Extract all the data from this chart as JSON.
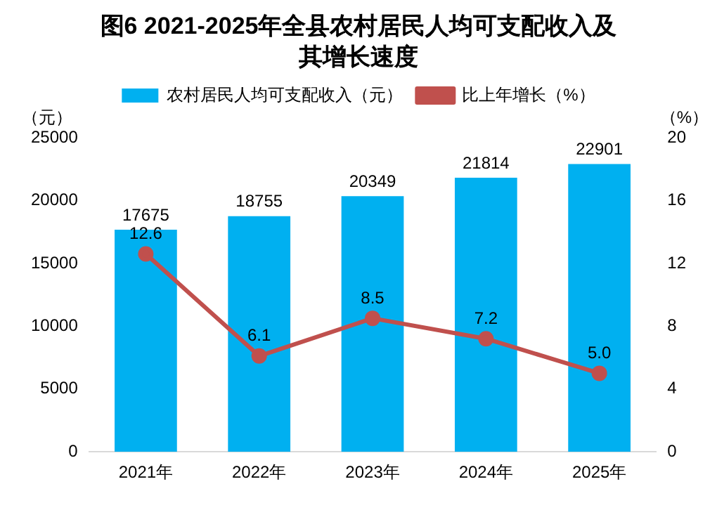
{
  "chart_data": {
    "type": "bar",
    "title": "图6  2021-2025年全县农村居民人均可支配收入及其增长速度",
    "categories": [
      "2021年",
      "2022年",
      "2023年",
      "2024年",
      "2025年"
    ],
    "series": [
      {
        "name": "农村居民人均可支配收入（元）",
        "color": "#00b0f0",
        "values": [
          17675,
          18755,
          20349,
          21814,
          22901
        ]
      },
      {
        "name": "比上年增长（%）",
        "type": "line",
        "axis": "y2",
        "color": "#c0504d",
        "values": [
          12.6,
          6.1,
          8.5,
          7.2,
          5.0
        ],
        "marker": "circle",
        "value_labels": [
          "12.6",
          "6.1",
          "8.5",
          "7.2",
          "5.0"
        ]
      }
    ],
    "ylabel": "（元）",
    "y2label": "（%）",
    "ylim": [
      0,
      25000
    ],
    "yticks": [
      0,
      5000,
      10000,
      15000,
      20000,
      25000
    ],
    "y2lim": [
      0,
      20
    ],
    "y2ticks": [
      0,
      4,
      8,
      12,
      16,
      20
    ],
    "data_labels": true,
    "grid": false,
    "legend": "top"
  }
}
